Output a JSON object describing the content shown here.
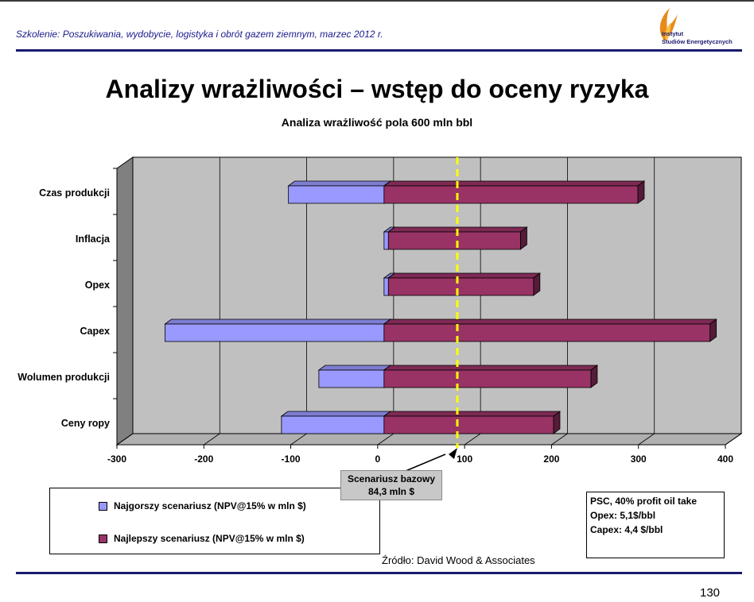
{
  "header": {
    "training_text": "Szkolenie: Poszukiwania, wydobycie, logistyka i obrót gazem ziemnym, marzec 2012 r.",
    "logo_line1": "Instytut",
    "logo_line2": "Studiów Energetycznych"
  },
  "page_title": "Analizy wrażliwości – wstęp do oceny ryzyka",
  "chart_data": {
    "type": "bar",
    "orientation": "horizontal",
    "title": "Analiza wrażliwość pola 600 mln bbl",
    "categories": [
      "Czas produkcji",
      "Inflacja",
      "Opex",
      "Capex",
      "Wolumen produkcji",
      "Ceny ropy"
    ],
    "series": [
      {
        "name": "Najgorszy scenariusz (NPV@15% w mln $)",
        "values": [
          -110,
          5,
          5,
          -252,
          -75,
          -118
        ],
        "color": "#9999ff"
      },
      {
        "name": "Najlepszy scenariusz (NPV@15% w mln $)",
        "values": [
          292,
          157,
          172,
          375,
          238,
          195
        ],
        "color": "#993366"
      }
    ],
    "xlim": [
      -300,
      400
    ],
    "xticks": [
      -300,
      -200,
      -100,
      0,
      100,
      200,
      300,
      400
    ],
    "grid": true,
    "reference_line": {
      "value": 84.3,
      "color": "#ffff00"
    },
    "base_label_line1": "Scenariusz bazowy",
    "base_label_line2": "84,3 mln $",
    "legend_placement": "bottom-left"
  },
  "info_box": {
    "line1": "PSC, 40% profit oil take",
    "line2": "Opex: 5,1$/bbl",
    "line3": "Capex: 4,4 $/bbl"
  },
  "source_text": "Źródło: David Wood & Associates",
  "page_number": "130"
}
